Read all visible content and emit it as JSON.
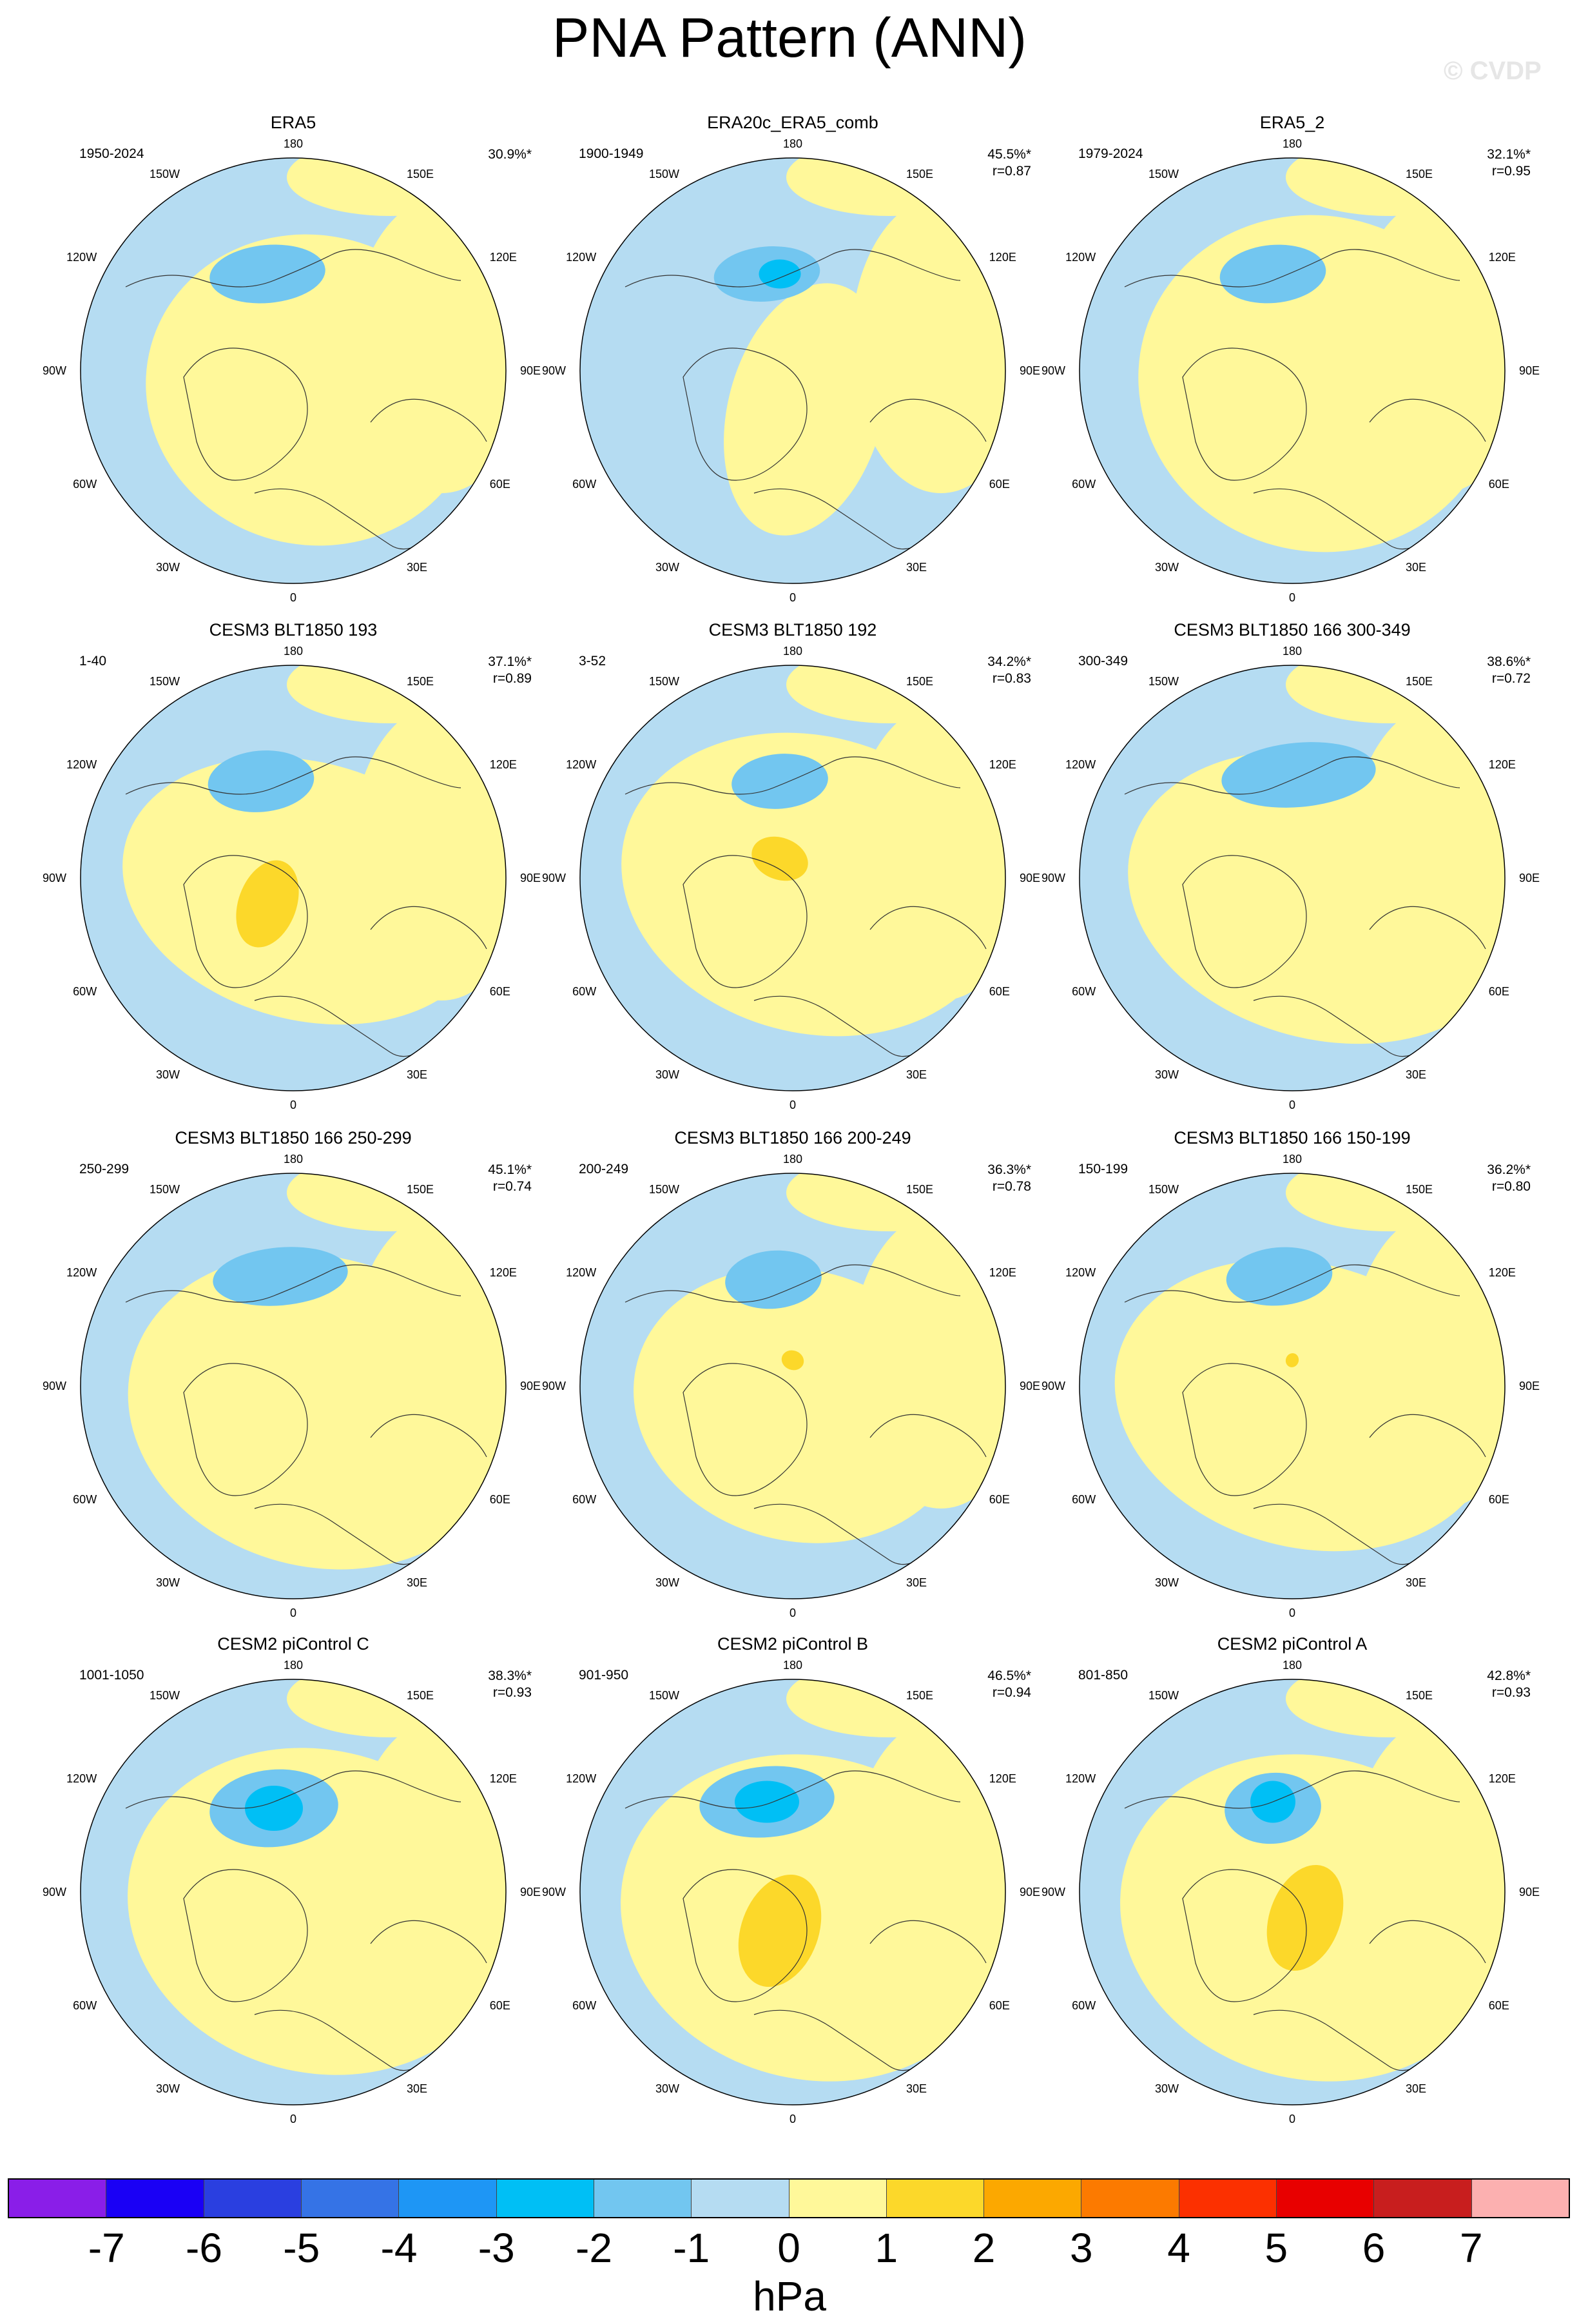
{
  "title": "PNA Pattern (ANN)",
  "watermark": "© CVDP",
  "colors": {
    "ocean_neg": "#b5dcf2",
    "land_pos": "#fff89a",
    "neg2": "#72c6f0",
    "neg3": "#00bff5",
    "pos2": "#fcd82a",
    "coast": "#333333"
  },
  "longitude_labels": [
    "180",
    "150E",
    "120E",
    "90E",
    "60E",
    "30E",
    "0",
    "30W",
    "60W",
    "90W",
    "120W",
    "150W"
  ],
  "panels": [
    {
      "title": "ERA5",
      "period": "1950-2024",
      "pct": "30.9%*",
      "r": ""
    },
    {
      "title": "ERA20c_ERA5_comb",
      "period": "1900-1949",
      "pct": "45.5%*",
      "r": "r=0.87"
    },
    {
      "title": "ERA5_2",
      "period": "1979-2024",
      "pct": "32.1%*",
      "r": "r=0.95"
    },
    {
      "title": "CESM3 BLT1850 193",
      "period": "1-40",
      "pct": "37.1%*",
      "r": "r=0.89"
    },
    {
      "title": "CESM3 BLT1850 192",
      "period": "3-52",
      "pct": "34.2%*",
      "r": "r=0.83"
    },
    {
      "title": "CESM3 BLT1850 166 300-349",
      "period": "300-349",
      "pct": "38.6%*",
      "r": "r=0.72"
    },
    {
      "title": "CESM3 BLT1850 166 250-299",
      "period": "250-299",
      "pct": "45.1%*",
      "r": "r=0.74"
    },
    {
      "title": "CESM3 BLT1850 166 200-249",
      "period": "200-249",
      "pct": "36.3%*",
      "r": "r=0.78"
    },
    {
      "title": "CESM3 BLT1850 166 150-199",
      "period": "150-199",
      "pct": "36.2%*",
      "r": "r=0.80"
    },
    {
      "title": "CESM2 piControl C",
      "period": "1001-1050",
      "pct": "38.3%*",
      "r": "r=0.93"
    },
    {
      "title": "CESM2 piControl B",
      "period": "901-950",
      "pct": "46.5%*",
      "r": "r=0.94"
    },
    {
      "title": "CESM2 piControl A",
      "period": "801-850",
      "pct": "42.8%*",
      "r": "r=0.93"
    }
  ],
  "colorbar": {
    "colors": [
      "#8a1ee8",
      "#1a00f5",
      "#2a3fe0",
      "#3573e6",
      "#1e96f5",
      "#00bff5",
      "#72c6f0",
      "#b5dcf2",
      "#fff89a",
      "#fcd82a",
      "#fca800",
      "#fc7a00",
      "#fc3000",
      "#e80000",
      "#c81e1e",
      "#fcb0b0"
    ],
    "labels": [
      "-7",
      "-6",
      "-5",
      "-4",
      "-3",
      "-2",
      "-1",
      "0",
      "1",
      "2",
      "3",
      "4",
      "5",
      "6",
      "7"
    ],
    "units": "hPa"
  }
}
